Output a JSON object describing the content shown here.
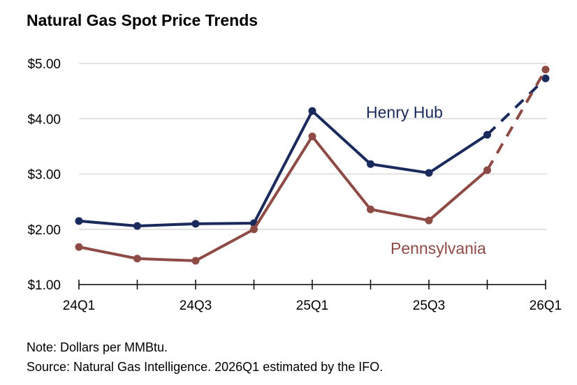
{
  "chart_data": {
    "type": "line",
    "title": "Natural Gas Spot Price Trends",
    "xlabel": "",
    "ylabel": "",
    "categories": [
      "24Q1",
      "24Q2",
      "24Q3",
      "24Q4",
      "25Q1",
      "25Q2",
      "25Q3",
      "25Q4",
      "26Q1"
    ],
    "x_tick_labels": [
      "24Q1",
      "24Q3",
      "25Q1",
      "25Q3",
      "26Q1"
    ],
    "y_tick_labels": [
      "$1.00",
      "$2.00",
      "$3.00",
      "$4.00",
      "$5.00"
    ],
    "y_ticks": [
      1,
      2,
      3,
      4,
      5
    ],
    "ylim": [
      1,
      5
    ],
    "grid": true,
    "estimated_from": "26Q1",
    "series": [
      {
        "name": "Henry Hub",
        "color": "#1b2a5c",
        "values": [
          2.15,
          2.06,
          2.1,
          2.11,
          4.14,
          3.18,
          3.02,
          3.71,
          4.73
        ]
      },
      {
        "name": "Pennsylvania",
        "color": "#8e4a45",
        "values": [
          1.68,
          1.47,
          1.43,
          2.0,
          3.68,
          2.36,
          2.16,
          3.07,
          4.89
        ]
      }
    ]
  },
  "notes": {
    "note": "Note: Dollars per MMBtu.",
    "source": "Source: Natural Gas Intelligence. 2026Q1 estimated by the IFO."
  }
}
